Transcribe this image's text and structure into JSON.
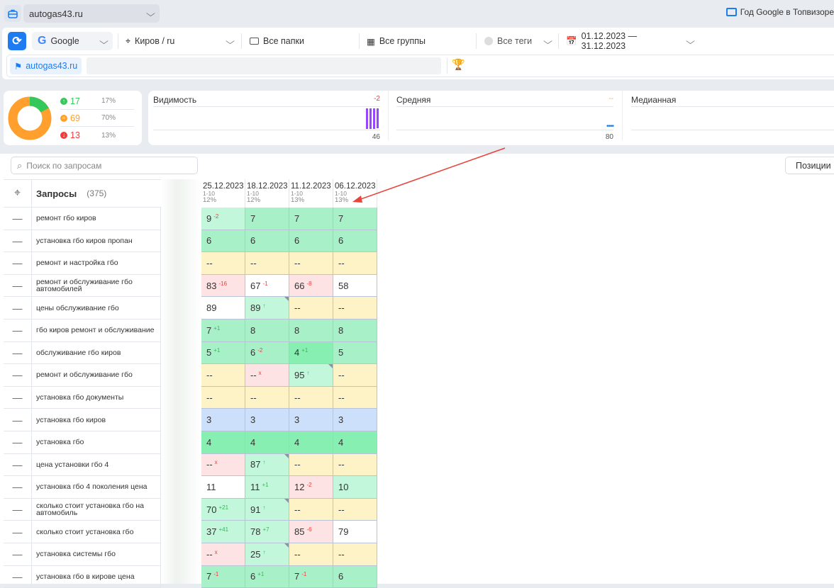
{
  "topbar": {
    "project": "autogas43.ru",
    "promo": "Год Google в Топвизоре"
  },
  "filters": {
    "engine": "Google",
    "region": "Киров / ru",
    "folders": "Все папки",
    "groups": "Все группы",
    "tags": "Все теги",
    "period": "01.12.2023 — 31.12.2023"
  },
  "tag_chip": "autogas43.ru",
  "summary": {
    "up": {
      "count": "17",
      "pct": "17%"
    },
    "same": {
      "count": "69",
      "pct": "70%"
    },
    "down": {
      "count": "13",
      "pct": "13%"
    },
    "colors": {
      "up": "#34c759",
      "same": "#ff9f2e",
      "down": "#f23c3c"
    }
  },
  "metrics": [
    {
      "title": "Видимость",
      "delta": "-2",
      "value": "46"
    },
    {
      "title": "Средняя",
      "delta": "--",
      "value": "80"
    },
    {
      "title": "Медианная",
      "delta": "",
      "value": ""
    }
  ],
  "search": {
    "placeholder": "Поиск по запросам"
  },
  "positions_button": "Позиции",
  "table": {
    "header": {
      "title": "Запросы",
      "count": "(375)"
    },
    "dates": [
      {
        "date": "25.12.2023",
        "range": "1-10",
        "pct": "12%"
      },
      {
        "date": "18.12.2023",
        "range": "1-10",
        "pct": "12%"
      },
      {
        "date": "11.12.2023",
        "range": "1-10",
        "pct": "13%"
      },
      {
        "date": "06.12.2023",
        "range": "1-10",
        "pct": "13%"
      }
    ],
    "rows": [
      {
        "kw": "ремонт гбо киров",
        "cells": [
          {
            "v": "9",
            "d": "-2",
            "bg": "lg"
          },
          {
            "v": "7",
            "bg": "g"
          },
          {
            "v": "7",
            "bg": "g"
          },
          {
            "v": "7",
            "bg": "g"
          }
        ]
      },
      {
        "kw": "установка гбо киров пропан",
        "cells": [
          {
            "v": "6",
            "bg": "g"
          },
          {
            "v": "6",
            "bg": "g"
          },
          {
            "v": "6",
            "bg": "g"
          },
          {
            "v": "6",
            "bg": "g"
          }
        ]
      },
      {
        "kw": "ремонт и настройка гбо",
        "cells": [
          {
            "v": "--",
            "bg": "y"
          },
          {
            "v": "--",
            "bg": "y"
          },
          {
            "v": "--",
            "bg": "y"
          },
          {
            "v": "--",
            "bg": "y"
          }
        ]
      },
      {
        "kw": "ремонт и обслуживание гбо автомобилей",
        "cells": [
          {
            "v": "83",
            "d": "-16",
            "bg": "p"
          },
          {
            "v": "67",
            "d": "-1",
            "bg": "w"
          },
          {
            "v": "66",
            "d": "-8",
            "bg": "p"
          },
          {
            "v": "58",
            "bg": "w"
          }
        ]
      },
      {
        "kw": "цены обслуживание гбо",
        "cells": [
          {
            "v": "89",
            "bg": "w"
          },
          {
            "v": "89",
            "d": "↑",
            "bg": "lg",
            "c": 1
          },
          {
            "v": "--",
            "bg": "y"
          },
          {
            "v": "--",
            "bg": "y"
          }
        ]
      },
      {
        "kw": "гбо киров ремонт и обслуживание",
        "cells": [
          {
            "v": "7",
            "d": "+1",
            "bg": "g"
          },
          {
            "v": "8",
            "bg": "g"
          },
          {
            "v": "8",
            "bg": "g"
          },
          {
            "v": "8",
            "bg": "g"
          }
        ]
      },
      {
        "kw": "обслуживание гбо киров",
        "cells": [
          {
            "v": "5",
            "d": "+1",
            "bg": "g"
          },
          {
            "v": "6",
            "d": "-2",
            "bg": "g"
          },
          {
            "v": "4",
            "d": "+1",
            "bg": "sg"
          },
          {
            "v": "5",
            "bg": "g"
          }
        ]
      },
      {
        "kw": "ремонт и обслуживание гбо",
        "cells": [
          {
            "v": "--",
            "bg": "y"
          },
          {
            "v": "--",
            "d": "x",
            "bg": "p"
          },
          {
            "v": "95",
            "d": "↑",
            "bg": "lg",
            "c": 1
          },
          {
            "v": "--",
            "bg": "y"
          }
        ]
      },
      {
        "kw": "установка гбо документы",
        "cells": [
          {
            "v": "--",
            "bg": "y"
          },
          {
            "v": "--",
            "bg": "y"
          },
          {
            "v": "--",
            "bg": "y"
          },
          {
            "v": "--",
            "bg": "y"
          }
        ]
      },
      {
        "kw": "установка гбо киров",
        "cells": [
          {
            "v": "3",
            "bg": "b"
          },
          {
            "v": "3",
            "bg": "b"
          },
          {
            "v": "3",
            "bg": "b"
          },
          {
            "v": "3",
            "bg": "b"
          }
        ]
      },
      {
        "kw": "установка гбо",
        "cells": [
          {
            "v": "4",
            "bg": "sg"
          },
          {
            "v": "4",
            "bg": "sg"
          },
          {
            "v": "4",
            "bg": "sg"
          },
          {
            "v": "4",
            "bg": "sg"
          }
        ]
      },
      {
        "kw": "цена установки гбо 4",
        "cells": [
          {
            "v": "--",
            "d": "x",
            "bg": "p"
          },
          {
            "v": "87",
            "d": "↑",
            "bg": "lg",
            "c": 1
          },
          {
            "v": "--",
            "bg": "y"
          },
          {
            "v": "--",
            "bg": "y"
          }
        ]
      },
      {
        "kw": "установка гбо 4 поколения цена",
        "cells": [
          {
            "v": "11",
            "bg": "w"
          },
          {
            "v": "11",
            "d": "+1",
            "bg": "lg"
          },
          {
            "v": "12",
            "d": "-2",
            "bg": "p"
          },
          {
            "v": "10",
            "bg": "lg"
          }
        ]
      },
      {
        "kw": "сколько стоит установка гбо на автомобиль",
        "cells": [
          {
            "v": "70",
            "d": "+21",
            "bg": "lg"
          },
          {
            "v": "91",
            "d": "↑",
            "bg": "lg",
            "c": 1
          },
          {
            "v": "--",
            "bg": "y"
          },
          {
            "v": "--",
            "bg": "y"
          }
        ]
      },
      {
        "kw": "сколько стоит установка гбо",
        "cells": [
          {
            "v": "37",
            "d": "+41",
            "bg": "lg"
          },
          {
            "v": "78",
            "d": "+7",
            "bg": "lg"
          },
          {
            "v": "85",
            "d": "-6",
            "bg": "p"
          },
          {
            "v": "79",
            "bg": "w"
          }
        ]
      },
      {
        "kw": "установка системы гбо",
        "cells": [
          {
            "v": "--",
            "d": "x",
            "bg": "p"
          },
          {
            "v": "25",
            "d": "↑",
            "bg": "lg",
            "c": 1
          },
          {
            "v": "--",
            "bg": "y"
          },
          {
            "v": "--",
            "bg": "y"
          }
        ]
      },
      {
        "kw": "установка гбо в кирове цена",
        "cells": [
          {
            "v": "7",
            "d": "-1",
            "bg": "g"
          },
          {
            "v": "6",
            "d": "+1",
            "bg": "g"
          },
          {
            "v": "7",
            "d": "-1",
            "bg": "g"
          },
          {
            "v": "6",
            "bg": "g"
          }
        ]
      }
    ]
  },
  "cell_colors": {
    "lg": "#c3f7db",
    "g": "#a8f0c8",
    "sg": "#88efb2",
    "y": "#fdf3c6",
    "p": "#fde3e3",
    "w": "#ffffff",
    "b": "#cde0fb"
  },
  "delta_colors": {
    "up": "#3cb45a",
    "down": "#f23c3c"
  }
}
